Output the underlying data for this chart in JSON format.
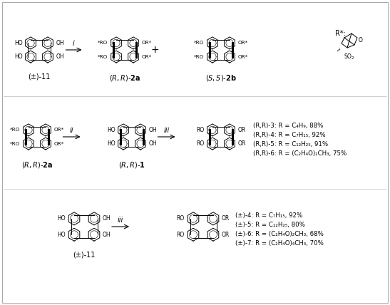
{
  "background_color": "#ffffff",
  "figsize": [
    5.47,
    4.28
  ],
  "dpi": 100,
  "rr_products": [
    "(R,R)-3: R = C₄H₉, 88%",
    "(R,R)-4: R = C₇H₁₅, 92%",
    "(R,R)-5: R = C₁₂H₂₅, 91%",
    "(R,R)-6: R = (C₂H₄O)₂CH₃, 75%"
  ],
  "pm_products": [
    "(±)-4: R = C₇H₁₅, 92%",
    "(±)-5: R = C₁₂H₂₅, 80%",
    "(±)-6: R = (C₂H₄O)₂CH₃, 68%",
    "(±)-7: R = (C₂H₄O)₄CH₃, 70%"
  ]
}
